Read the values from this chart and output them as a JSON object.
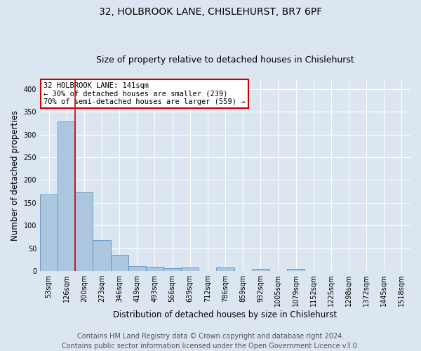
{
  "title_line1": "32, HOLBROOK LANE, CHISLEHURST, BR7 6PF",
  "title_line2": "Size of property relative to detached houses in Chislehurst",
  "xlabel": "Distribution of detached houses by size in Chislehurst",
  "ylabel": "Number of detached properties",
  "footer_line1": "Contains HM Land Registry data © Crown copyright and database right 2024.",
  "footer_line2": "Contains public sector information licensed under the Open Government Licence v3.0.",
  "categories": [
    "53sqm",
    "126sqm",
    "200sqm",
    "273sqm",
    "346sqm",
    "419sqm",
    "493sqm",
    "566sqm",
    "639sqm",
    "712sqm",
    "786sqm",
    "859sqm",
    "932sqm",
    "1005sqm",
    "1079sqm",
    "1152sqm",
    "1225sqm",
    "1298sqm",
    "1372sqm",
    "1445sqm",
    "1518sqm"
  ],
  "values": [
    168,
    329,
    173,
    68,
    35,
    11,
    9,
    6,
    7,
    0,
    8,
    0,
    4,
    0,
    5,
    0,
    0,
    0,
    0,
    0,
    0
  ],
  "bar_color": "#adc6e0",
  "bar_edge_color": "#5a90c0",
  "bar_edge_width": 0.6,
  "property_line_color": "#cc0000",
  "annotation_text": "32 HOLBROOK LANE: 141sqm\n← 30% of detached houses are smaller (239)\n70% of semi-detached houses are larger (559) →",
  "annotation_box_color": "#ffffff",
  "annotation_box_edge": "#cc0000",
  "ylim": [
    0,
    420
  ],
  "yticks": [
    0,
    50,
    100,
    150,
    200,
    250,
    300,
    350,
    400
  ],
  "background_color": "#dce6f0",
  "plot_background": "#dce6f0",
  "grid_color": "#ffffff",
  "title_fontsize": 10,
  "subtitle_fontsize": 9,
  "axis_label_fontsize": 8.5,
  "tick_fontsize": 7,
  "footer_fontsize": 7,
  "annotation_fontsize": 7.5
}
